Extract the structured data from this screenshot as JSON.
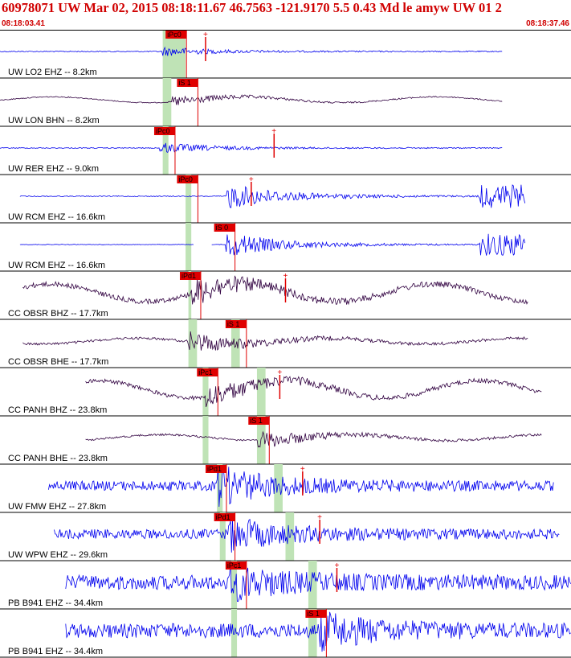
{
  "header": {
    "event_line": "60978071 UW Mar 02, 2015 08:18:11.67    46.7563 -121.9170  5.5 0.43 Md le amyw UW 01    2",
    "start_time": "08:18:03.41",
    "end_time": "08:18:37.46"
  },
  "colors": {
    "header_text": "#d00000",
    "pick_red": "#e00000",
    "pick_label": "#000000",
    "window_green": "#bfe3b6",
    "trace_blue": "#0000ee",
    "trace_purple": "#300040",
    "panel_border": "#000000"
  },
  "chart_data": {
    "type": "seismogram",
    "time_axis": {
      "start": "08:18:03.41",
      "end": "08:18:37.46"
    },
    "traces": [
      {
        "label": "UW LO2 EHZ -- 8.2km",
        "color": "blue",
        "data_start": 0.0,
        "data_end": 0.88,
        "amp": 0.15,
        "noise": 0.02,
        "onset": 0.285,
        "pick": "iPc0",
        "pick_pos": 0.29,
        "green": [
          0.285,
          0.325
        ],
        "extra_marks": [
          0.36
        ]
      },
      {
        "label": "UW LON BHN -- 8.2km",
        "color": "purple",
        "data_start": 0.0,
        "data_end": 0.88,
        "amp": 0.18,
        "noise": 0.02,
        "onset": 0.3,
        "pick": "iS 1",
        "pick_pos": 0.31,
        "green": [
          0.285,
          0.3
        ]
      },
      {
        "label": "UW RER EHZ -- 9.0km",
        "color": "blue",
        "data_start": 0.0,
        "data_end": 0.88,
        "amp": 0.18,
        "noise": 0.02,
        "onset": 0.28,
        "pick": "iPc0",
        "pick_pos": 0.27,
        "green": [
          0.285,
          0.295
        ],
        "extra_marks": [
          0.48
        ]
      },
      {
        "label": "UW RCM EHZ -- 16.6km",
        "color": "blue",
        "data_start": 0.035,
        "data_end": 0.92,
        "amp": 0.45,
        "noise": 0.02,
        "onset": 0.395,
        "pick": "iPc0",
        "pick_pos": 0.31,
        "green": [
          0.325,
          0.335
        ],
        "extra_marks": [
          0.44
        ],
        "tail_burst": [
          0.84,
          0.92
        ]
      },
      {
        "label": "UW RCM EHZ -- 16.6km",
        "color": "blue",
        "data_start": 0.035,
        "data_end": 0.92,
        "amp": 0.45,
        "noise": 0.01,
        "onset": 0.395,
        "pick": "iS 0",
        "pick_pos": 0.375,
        "green": [
          0.325,
          0.335
        ],
        "gap": [
          0.34,
          0.37
        ],
        "tail_burst": [
          0.84,
          0.92
        ]
      },
      {
        "label": "CC OBSR BHZ -- 17.7km",
        "color": "purple",
        "data_start": 0.04,
        "data_end": 0.925,
        "amp": 0.45,
        "noise": 0.1,
        "onset": 0.335,
        "pick": "iPd1",
        "pick_pos": 0.315,
        "green": [
          0.33,
          0.335
        ],
        "extra_marks": [
          0.5
        ]
      },
      {
        "label": "CC OBSR BHE -- 17.7km",
        "color": "purple",
        "data_start": 0.04,
        "data_end": 0.925,
        "amp": 0.35,
        "noise": 0.05,
        "onset": 0.33,
        "pick": "iS 1",
        "pick_pos": 0.395,
        "green": [
          0.33,
          0.345,
          0.405,
          0.42
        ]
      },
      {
        "label": "CC PANH BHZ -- 23.8km",
        "color": "purple",
        "data_start": 0.15,
        "data_end": 0.95,
        "amp": 0.4,
        "noise": 0.08,
        "onset": 0.36,
        "pick": "iPc1",
        "pick_pos": 0.345,
        "green": [
          0.355,
          0.365,
          0.45,
          0.465
        ],
        "extra_marks": [
          0.49
        ]
      },
      {
        "label": "CC PANH BHE -- 23.8km",
        "color": "purple",
        "data_start": 0.15,
        "data_end": 0.95,
        "amp": 0.3,
        "noise": 0.04,
        "onset": 0.45,
        "pick": "iS 1",
        "pick_pos": 0.435,
        "green": [
          0.355,
          0.365,
          0.45,
          0.465
        ]
      },
      {
        "label": "UW FMW EHZ -- 27.8km",
        "color": "blue",
        "data_start": 0.085,
        "data_end": 0.97,
        "amp": 0.6,
        "noise": 0.2,
        "onset": 0.38,
        "pick": "iPd1",
        "pick_pos": 0.36,
        "green": [
          0.38,
          0.39,
          0.48,
          0.495
        ],
        "extra_marks": [
          0.53
        ]
      },
      {
        "label": "UW WPW EHZ -- 29.6km",
        "color": "blue",
        "data_start": 0.095,
        "data_end": 0.98,
        "amp": 0.5,
        "noise": 0.2,
        "onset": 0.4,
        "pick": "iPd1",
        "pick_pos": 0.375,
        "green": [
          0.385,
          0.395,
          0.5,
          0.515
        ],
        "extra_marks": [
          0.56
        ]
      },
      {
        "label": "PB B941 EHZ -- 34.4km",
        "color": "blue",
        "data_start": 0.115,
        "data_end": 1.0,
        "amp": 0.5,
        "noise": 0.3,
        "onset": 0.4,
        "pick": "iPc1",
        "pick_pos": 0.395,
        "green": [
          0.405,
          0.415,
          0.54,
          0.555
        ],
        "extra_marks": [
          0.59
        ]
      },
      {
        "label": "PB B941 EHZ -- 34.4km",
        "color": "blue",
        "data_start": 0.115,
        "data_end": 1.0,
        "amp": 0.5,
        "noise": 0.3,
        "onset": 0.56,
        "pick": "iS 1",
        "pick_pos": 0.535,
        "green": [
          0.405,
          0.415,
          0.54,
          0.555
        ]
      }
    ]
  }
}
